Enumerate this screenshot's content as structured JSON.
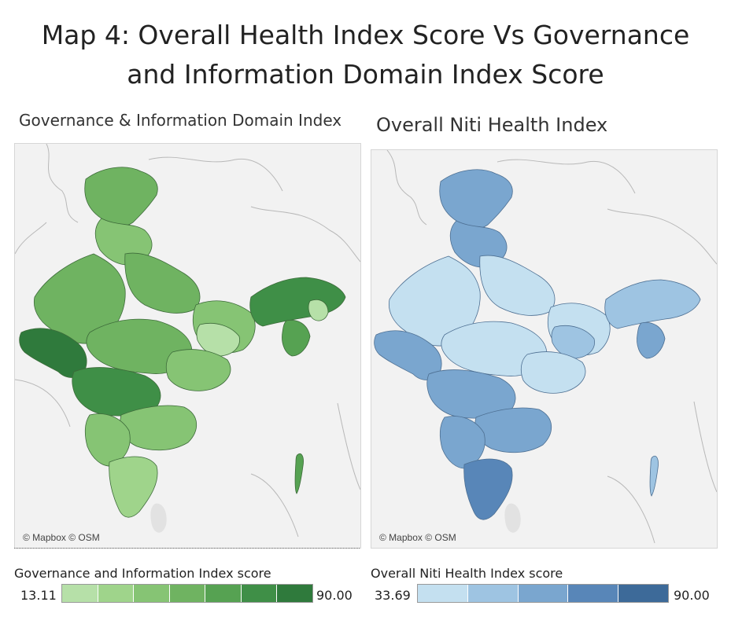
{
  "title_line1": "Map 4: Overall Health Index Score Vs Governance",
  "title_line2": "and Information Domain Index Score",
  "left_map": {
    "subtitle": "Governance & Information Domain Index",
    "attribution": "© Mapbox © OSM",
    "legend": {
      "title": "Governance and Information Index score",
      "min": "13.11",
      "max": "90.00",
      "colors": [
        "#b6e0a8",
        "#9fd48b",
        "#86c474",
        "#6fb361",
        "#56a252",
        "#3f8f47",
        "#2f7a3c"
      ]
    },
    "fill_colors": {
      "base": "#7cb46a",
      "dark": "#4b8a51",
      "light": "#a8d891"
    }
  },
  "right_map": {
    "subtitle": "Overall Niti Health Index",
    "attribution": "© Mapbox © OSM",
    "legend": {
      "title": "Overall Niti Health Index score",
      "min": "33.69",
      "max": "90.00",
      "colors": [
        "#c4e0f0",
        "#9ec4e2",
        "#7aa6cf",
        "#5886b8",
        "#3d6a99"
      ]
    },
    "fill_colors": {
      "base": "#7fa6cd",
      "light": "#c8e2f2",
      "dark": "#5e88b8"
    }
  }
}
